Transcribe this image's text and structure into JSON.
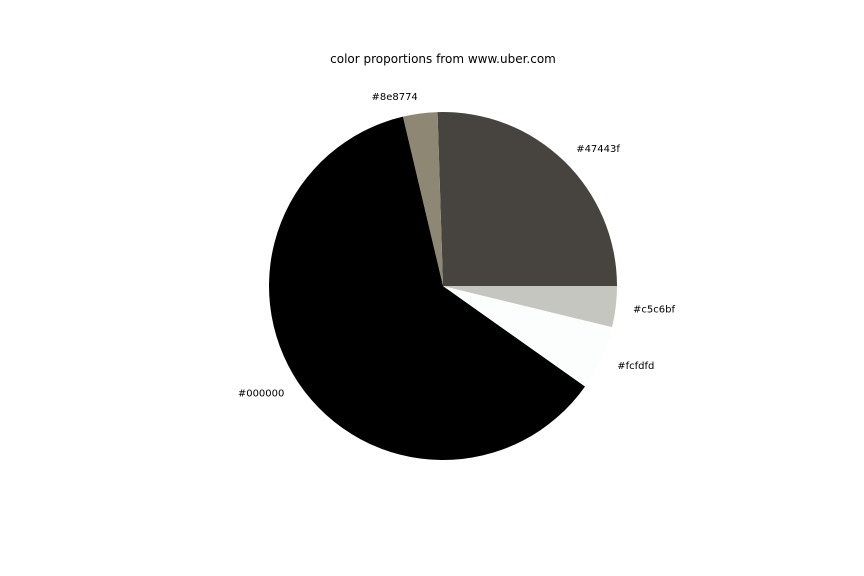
{
  "chart_data": {
    "type": "pie",
    "title": "color proportions from www.uber.com",
    "start_angle_deg": 0,
    "direction": "counterclockwise",
    "slices": [
      {
        "label": "#47443f",
        "value": 25.5,
        "color": "#47443f"
      },
      {
        "label": "#8e8774",
        "value": 3.2,
        "color": "#8e8774"
      },
      {
        "label": "#000000",
        "value": 61.5,
        "color": "#000000"
      },
      {
        "label": "#fcfdfd",
        "value": 6.0,
        "color": "#fcfdfd"
      },
      {
        "label": "#c5c6bf",
        "value": 3.8,
        "color": "#c5c6bf"
      }
    ]
  }
}
